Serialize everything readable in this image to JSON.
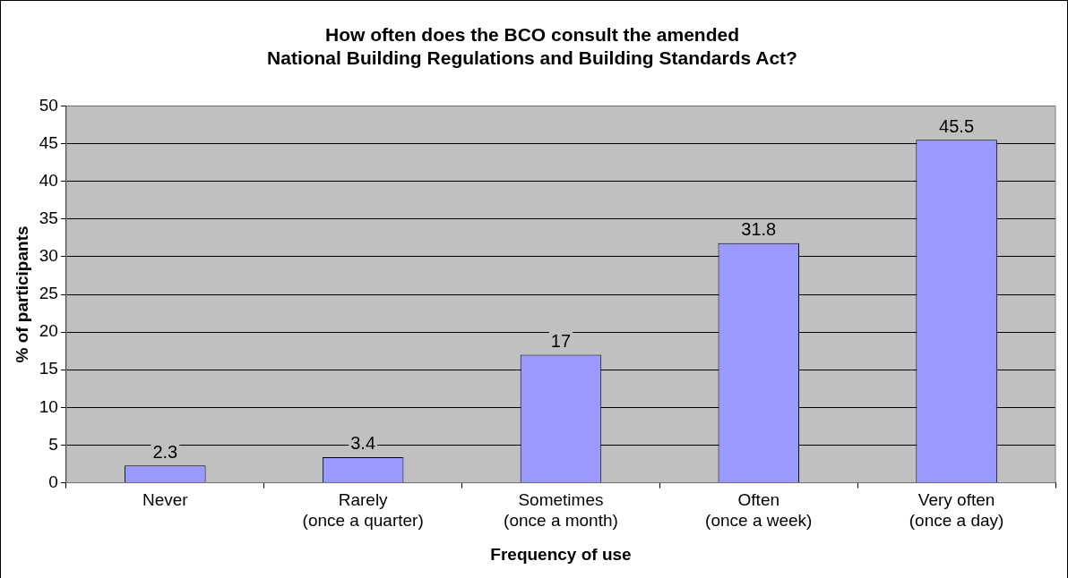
{
  "chart_data": {
    "type": "bar",
    "title": "How often does the BCO consult the amended\nNational Building Regulations and Building Standards Act?",
    "xlabel": "Frequency of use",
    "ylabel": "% of participants",
    "categories": [
      "Never",
      "Rarely\n(once a quarter)",
      "Sometimes\n(once a month)",
      "Often\n(once a week)",
      "Very often\n(once a day)"
    ],
    "values": [
      2.3,
      3.4,
      17,
      31.8,
      45.5
    ],
    "color": "#9999ff",
    "ylim": [
      0,
      50
    ],
    "yticks": [
      0,
      5,
      10,
      15,
      20,
      25,
      30,
      35,
      40,
      45,
      50
    ],
    "grid": "y",
    "legend": false,
    "data_labels": true
  }
}
